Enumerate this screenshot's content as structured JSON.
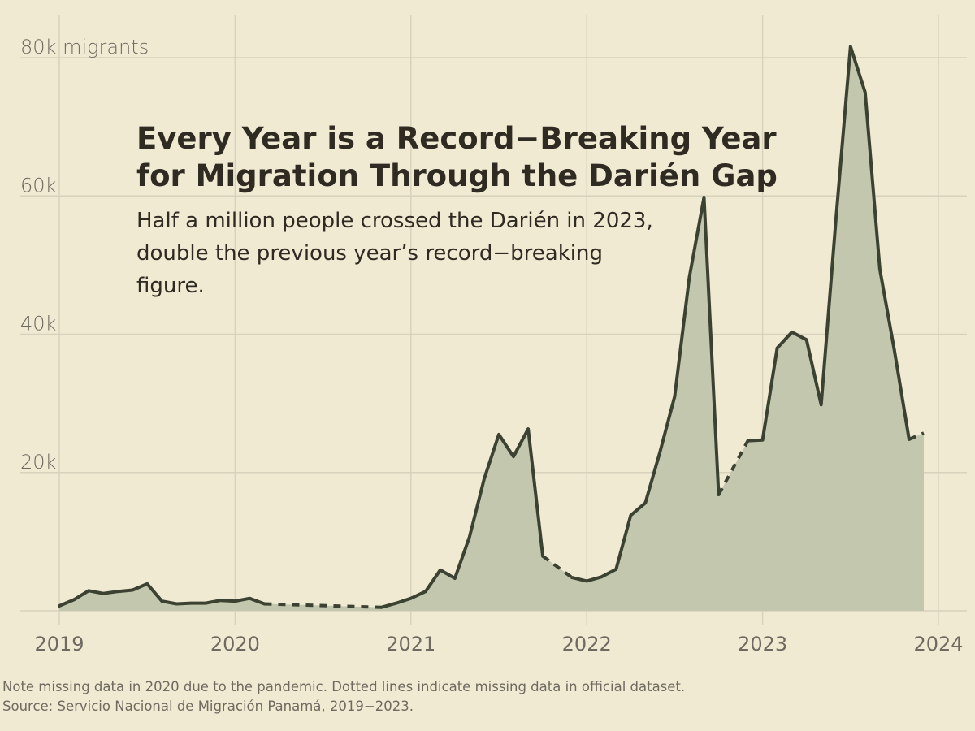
{
  "chart_data": {
    "type": "area",
    "title": "Every Year is a Record−Breaking Year for Migration Through the Darién Gap",
    "subtitle": "Half a million people crossed the Darién in 2023, double the previous year’s record−breaking figure.",
    "ylabel": "",
    "xlabel": "",
    "xlim": [
      2019,
      2024
    ],
    "ylim": [
      0,
      80000
    ],
    "x_ticks": [
      "2019",
      "2020",
      "2021",
      "2022",
      "2023",
      "2024"
    ],
    "y_ticks": [
      {
        "value": 20000,
        "label": "20k"
      },
      {
        "value": 40000,
        "label": "40k"
      },
      {
        "value": 60000,
        "label": "60k"
      },
      {
        "value": 80000,
        "label": "80k migrants"
      }
    ],
    "grid": true,
    "series": [
      {
        "values": [
          {
            "x": "2019-01",
            "y": 700
          },
          {
            "x": "2019-02",
            "y": 1600
          },
          {
            "x": "2019-03",
            "y": 2900
          },
          {
            "x": "2019-04",
            "y": 2500
          },
          {
            "x": "2019-05",
            "y": 2800
          },
          {
            "x": "2019-06",
            "y": 3000
          },
          {
            "x": "2019-07",
            "y": 3900
          },
          {
            "x": "2019-08",
            "y": 1400
          },
          {
            "x": "2019-09",
            "y": 1000
          },
          {
            "x": "2019-10",
            "y": 1100
          },
          {
            "x": "2019-11",
            "y": 1100
          },
          {
            "x": "2019-12",
            "y": 1500
          },
          {
            "x": "2020-01",
            "y": 1400
          },
          {
            "x": "2020-02",
            "y": 1800
          },
          {
            "x": "2020-03",
            "y": 1000
          },
          {
            "x": "2020-11",
            "y": 500
          },
          {
            "x": "2020-12",
            "y": 1100
          },
          {
            "x": "2021-01",
            "y": 1800
          },
          {
            "x": "2021-02",
            "y": 2800
          },
          {
            "x": "2021-03",
            "y": 5900
          },
          {
            "x": "2021-04",
            "y": 4700
          },
          {
            "x": "2021-05",
            "y": 10700
          },
          {
            "x": "2021-06",
            "y": 19100
          },
          {
            "x": "2021-07",
            "y": 25500
          },
          {
            "x": "2021-08",
            "y": 22300
          },
          {
            "x": "2021-09",
            "y": 26300
          },
          {
            "x": "2021-10",
            "y": 7900
          },
          {
            "x": "2021-12",
            "y": 4800
          },
          {
            "x": "2022-01",
            "y": 4300
          },
          {
            "x": "2022-02",
            "y": 4900
          },
          {
            "x": "2022-03",
            "y": 6000
          },
          {
            "x": "2022-04",
            "y": 13800
          },
          {
            "x": "2022-05",
            "y": 15600
          },
          {
            "x": "2022-06",
            "y": 23000
          },
          {
            "x": "2022-07",
            "y": 31000
          },
          {
            "x": "2022-08",
            "y": 48200
          },
          {
            "x": "2022-09",
            "y": 59800
          },
          {
            "x": "2022-10",
            "y": 16800
          },
          {
            "x": "2022-12",
            "y": 24600
          },
          {
            "x": "2023-01",
            "y": 24700
          },
          {
            "x": "2023-02",
            "y": 38000
          },
          {
            "x": "2023-03",
            "y": 40300
          },
          {
            "x": "2023-04",
            "y": 39200
          },
          {
            "x": "2023-05",
            "y": 29800
          },
          {
            "x": "2023-06",
            "y": 56500
          },
          {
            "x": "2023-07",
            "y": 81600
          },
          {
            "x": "2023-08",
            "y": 75000
          },
          {
            "x": "2023-09",
            "y": 49400
          },
          {
            "x": "2023-10",
            "y": 37600
          },
          {
            "x": "2023-11",
            "y": 24800
          },
          {
            "x": "2023-12",
            "y": 25700
          }
        ],
        "missing_ranges": [
          [
            "2020-03",
            "2020-11"
          ],
          [
            "2021-10",
            "2021-12"
          ],
          [
            "2022-10",
            "2022-12"
          ],
          [
            "2023-11",
            "2023-12"
          ]
        ]
      }
    ],
    "colors": {
      "background": "#f1ead3",
      "line": "#3b4231",
      "area": "#c2c7ad",
      "grid": "#d8d1bc"
    }
  },
  "footer": {
    "note": "Note missing data in 2020 due to the pandemic. Dotted lines indicate missing data in official dataset.",
    "source": "Source: Servicio Nacional de Migración Panamá, 2019−2023."
  }
}
